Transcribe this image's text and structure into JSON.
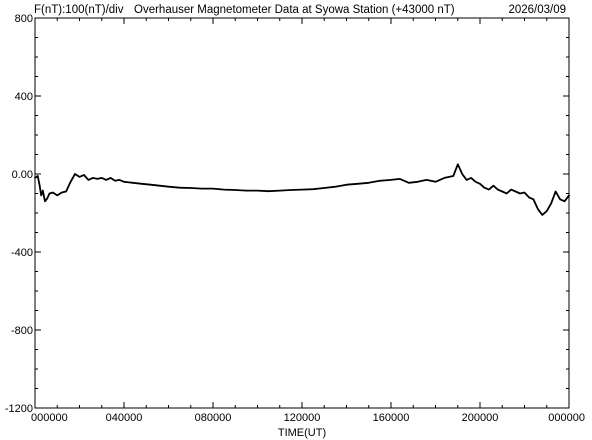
{
  "header": {
    "left_label": "F(nT):100(nT)/div",
    "title": "Overhauser Magnetometer Data at Syowa Station (+43000 nT)",
    "date": "2026/03/09"
  },
  "colors": {
    "background": "#ffffff",
    "line": "#000000",
    "axis": "#000000"
  },
  "chart_data": {
    "type": "line",
    "title": "Overhauser Magnetometer Data at Syowa Station (+43000 nT)",
    "xlabel": "TIME(UT)",
    "ylabel": "",
    "xlim": [
      0,
      24
    ],
    "ylim": [
      -1200,
      800
    ],
    "grid": false,
    "x_ticks": [
      "000000",
      "040000",
      "080000",
      "120000",
      "160000",
      "200000",
      "000000"
    ],
    "y_ticks": [
      "800",
      "400",
      "0.00",
      "-400",
      "-800",
      "-1200"
    ],
    "series": [
      {
        "values": [
          [
            0.0,
            -20
          ],
          [
            0.12,
            -10
          ],
          [
            0.2,
            -55
          ],
          [
            0.28,
            -110
          ],
          [
            0.35,
            -85
          ],
          [
            0.45,
            -140
          ],
          [
            0.55,
            -125
          ],
          [
            0.65,
            -100
          ],
          [
            0.8,
            -95
          ],
          [
            1.0,
            -110
          ],
          [
            1.2,
            -95
          ],
          [
            1.4,
            -90
          ],
          [
            1.6,
            -40
          ],
          [
            1.8,
            0
          ],
          [
            2.0,
            -15
          ],
          [
            2.2,
            -5
          ],
          [
            2.4,
            -30
          ],
          [
            2.6,
            -20
          ],
          [
            2.8,
            -25
          ],
          [
            3.0,
            -20
          ],
          [
            3.2,
            -30
          ],
          [
            3.4,
            -20
          ],
          [
            3.6,
            -35
          ],
          [
            3.8,
            -30
          ],
          [
            4.0,
            -40
          ],
          [
            4.4,
            -45
          ],
          [
            4.8,
            -50
          ],
          [
            5.2,
            -55
          ],
          [
            5.6,
            -60
          ],
          [
            6.0,
            -65
          ],
          [
            6.5,
            -70
          ],
          [
            7.0,
            -72
          ],
          [
            7.5,
            -75
          ],
          [
            8.0,
            -75
          ],
          [
            8.5,
            -80
          ],
          [
            9.0,
            -82
          ],
          [
            9.5,
            -85
          ],
          [
            10.0,
            -85
          ],
          [
            10.5,
            -88
          ],
          [
            11.0,
            -85
          ],
          [
            11.5,
            -82
          ],
          [
            12.0,
            -80
          ],
          [
            12.5,
            -78
          ],
          [
            13.0,
            -72
          ],
          [
            13.5,
            -65
          ],
          [
            14.0,
            -55
          ],
          [
            14.5,
            -50
          ],
          [
            15.0,
            -45
          ],
          [
            15.5,
            -35
          ],
          [
            16.0,
            -30
          ],
          [
            16.4,
            -25
          ],
          [
            16.8,
            -45
          ],
          [
            17.2,
            -40
          ],
          [
            17.6,
            -30
          ],
          [
            18.0,
            -40
          ],
          [
            18.4,
            -20
          ],
          [
            18.8,
            -10
          ],
          [
            19.0,
            50
          ],
          [
            19.2,
            0
          ],
          [
            19.4,
            -30
          ],
          [
            19.6,
            -20
          ],
          [
            19.8,
            -40
          ],
          [
            20.0,
            -50
          ],
          [
            20.2,
            -70
          ],
          [
            20.4,
            -80
          ],
          [
            20.6,
            -60
          ],
          [
            20.8,
            -80
          ],
          [
            21.0,
            -90
          ],
          [
            21.2,
            -100
          ],
          [
            21.4,
            -80
          ],
          [
            21.6,
            -90
          ],
          [
            21.8,
            -100
          ],
          [
            22.0,
            -95
          ],
          [
            22.2,
            -120
          ],
          [
            22.4,
            -130
          ],
          [
            22.6,
            -180
          ],
          [
            22.8,
            -210
          ],
          [
            23.0,
            -190
          ],
          [
            23.2,
            -150
          ],
          [
            23.4,
            -90
          ],
          [
            23.6,
            -130
          ],
          [
            23.8,
            -140
          ],
          [
            24.0,
            -110
          ]
        ]
      }
    ]
  }
}
